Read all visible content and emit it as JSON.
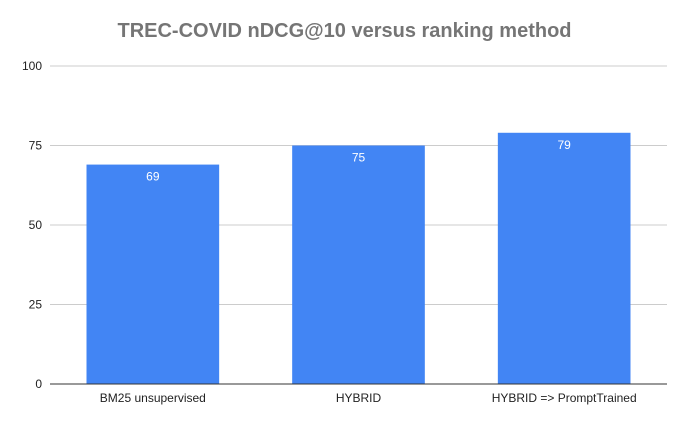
{
  "chart_data": {
    "type": "bar",
    "title": "TREC-COVID nDCG@10 versus ranking method",
    "categories": [
      "BM25 unsupervised",
      "HYBRID",
      "HYBRID => PromptTrained"
    ],
    "values": [
      69,
      75,
      79
    ],
    "data_labels": [
      "69",
      "75",
      "79"
    ],
    "ylim": [
      0,
      100
    ],
    "yticks": [
      0,
      25,
      50,
      75,
      100
    ],
    "ytick_labels": [
      "0",
      "25",
      "50",
      "75",
      "100"
    ],
    "xlabel": "",
    "ylabel": "",
    "grid": true,
    "legend": "none",
    "bar_color": "#4285F4",
    "grid_color": "#CCCCCC",
    "axis_color": "#333333"
  }
}
